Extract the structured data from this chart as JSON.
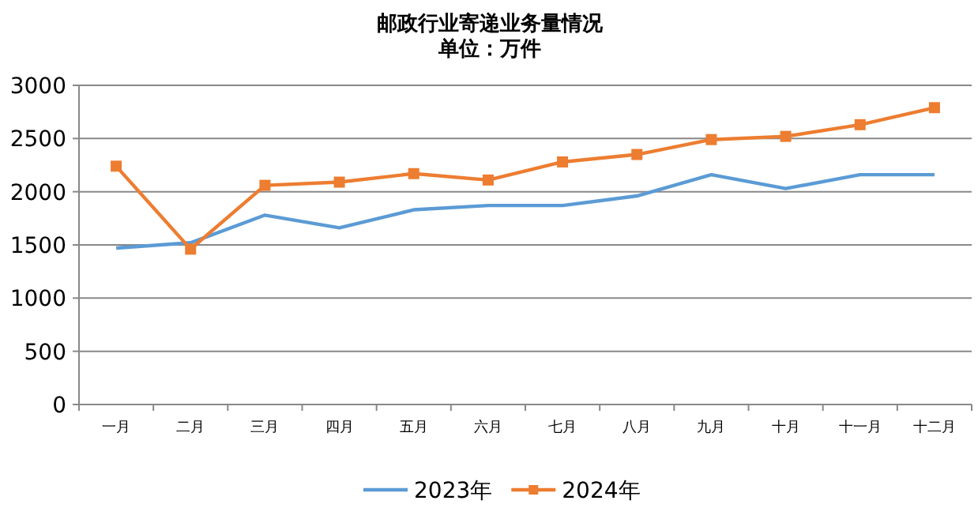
{
  "chart_data": {
    "type": "line",
    "title": "邮政行业寄递业务量情况",
    "subtitle": "单位：万件",
    "categories": [
      "一月",
      "二月",
      "三月",
      "四月",
      "五月",
      "六月",
      "七月",
      "八月",
      "九月",
      "十月",
      "十一月",
      "十二月"
    ],
    "series": [
      {
        "name": "2023年",
        "color": "#5b9bd5",
        "marker": "none",
        "values": [
          1470,
          1520,
          1780,
          1660,
          1830,
          1870,
          1870,
          1960,
          2160,
          2030,
          2160,
          2160
        ]
      },
      {
        "name": "2024年",
        "color": "#ed7d31",
        "marker": "square",
        "values": [
          2240,
          1460,
          2060,
          2090,
          2170,
          2110,
          2280,
          2350,
          2490,
          2520,
          2630,
          2790
        ]
      }
    ],
    "ylim": [
      0,
      3000
    ],
    "yticks": [
      0,
      500,
      1000,
      1500,
      2000,
      2500,
      3000
    ],
    "grid": "y",
    "legend": "bottom",
    "line_style": "solid"
  }
}
